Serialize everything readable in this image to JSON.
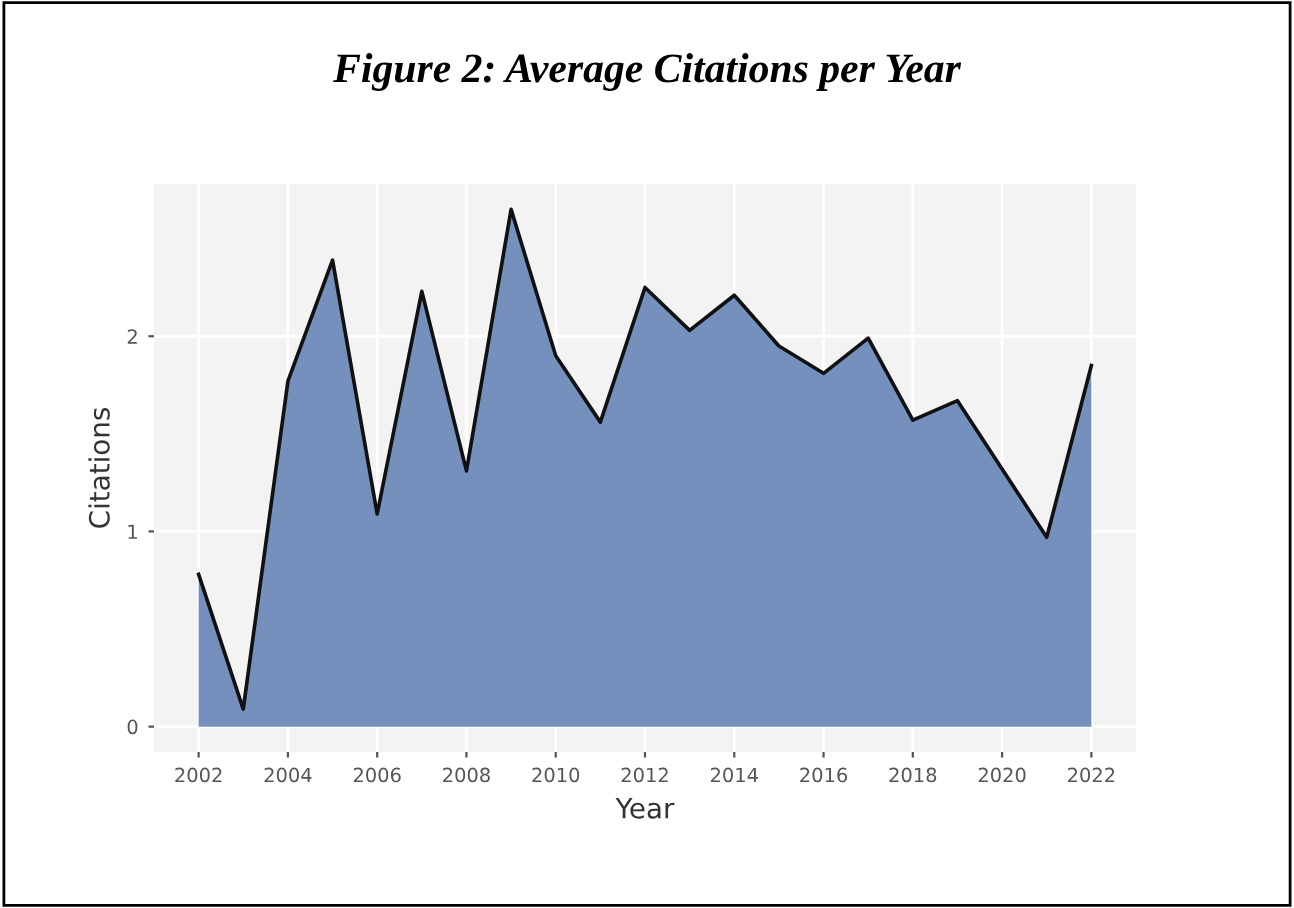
{
  "chart_data": {
    "type": "area",
    "title": "Figure 2: Average Citations per Year",
    "xlabel": "Year",
    "ylabel": "Citations",
    "x": [
      2002,
      2003,
      2004,
      2005,
      2006,
      2007,
      2008,
      2009,
      2010,
      2011,
      2012,
      2013,
      2014,
      2015,
      2016,
      2017,
      2018,
      2019,
      2020,
      2021,
      2022
    ],
    "series": [
      {
        "color": "#7590bc",
        "values": [
          0.78,
          0.09,
          1.77,
          2.39,
          1.09,
          2.23,
          1.31,
          2.65,
          1.9,
          1.56,
          2.25,
          2.03,
          2.21,
          1.95,
          1.81,
          1.99,
          1.57,
          1.67,
          1.32,
          0.97,
          1.85
        ]
      }
    ],
    "xlim": [
      2001,
      2023
    ],
    "ylim": [
      -0.13,
      2.78
    ],
    "xticks": [
      2002,
      2004,
      2006,
      2008,
      2010,
      2012,
      2014,
      2016,
      2018,
      2020,
      2022
    ],
    "yticks": [
      0,
      1,
      2
    ],
    "grid": true,
    "legend": false
  }
}
